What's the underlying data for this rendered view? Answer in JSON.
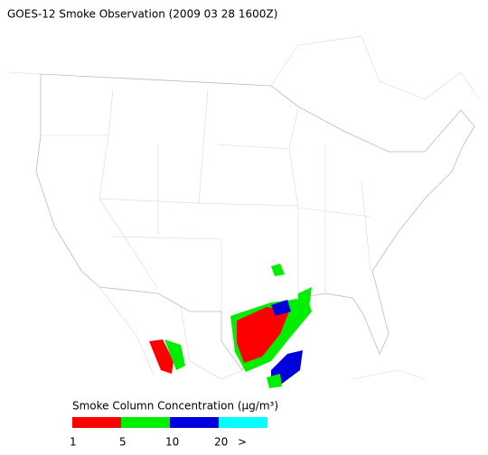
{
  "title": "GOES-12 Smoke Observation (2009 03 28  1600Z)",
  "legend": {
    "title": "Smoke Column Concentration (μg/m³)",
    "colors": [
      "#ff0000",
      "#00ee00",
      "#0000dd",
      "#00ffff"
    ],
    "labels": [
      "1",
      "5",
      "10",
      "20",
      ">"
    ]
  }
}
